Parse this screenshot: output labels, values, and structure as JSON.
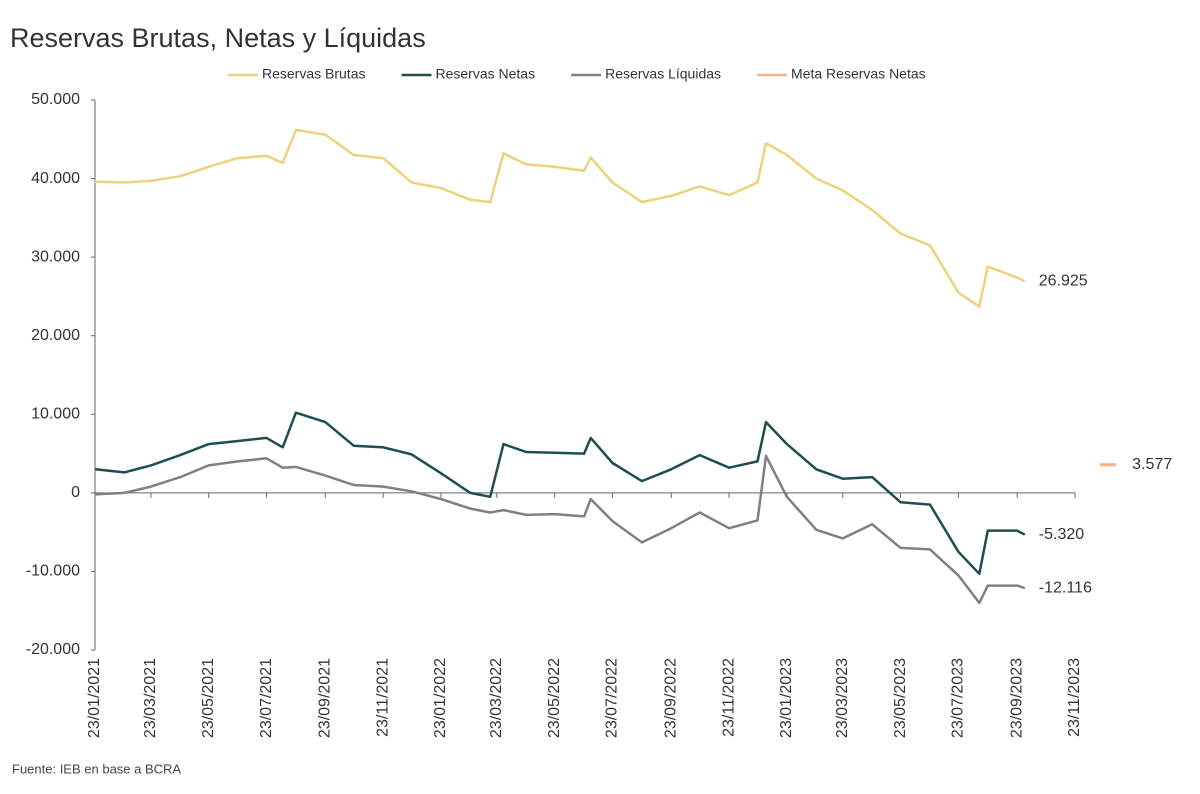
{
  "chart_data": {
    "type": "line",
    "title": "Reservas Brutas, Netas y Líquidas",
    "source": "Fuente: IEB en base a BCRA",
    "x": [
      "2021-01-23",
      "2021-02-23",
      "2021-03-23",
      "2021-04-23",
      "2021-05-23",
      "2021-06-23",
      "2021-07-23",
      "2021-08-09",
      "2021-08-23",
      "2021-09-23",
      "2021-10-23",
      "2021-11-23",
      "2021-12-23",
      "2022-01-23",
      "2022-02-23",
      "2022-03-16",
      "2022-03-30",
      "2022-04-23",
      "2022-05-23",
      "2022-06-23",
      "2022-06-30",
      "2022-07-23",
      "2022-08-23",
      "2022-09-23",
      "2022-10-23",
      "2022-11-23",
      "2022-12-23",
      "2023-01-01",
      "2023-01-23",
      "2023-02-23",
      "2023-03-23",
      "2023-04-23",
      "2023-05-23",
      "2023-06-23",
      "2023-07-23",
      "2023-08-14",
      "2023-08-23",
      "2023-09-23",
      "2023-10-01"
    ],
    "series": [
      {
        "name": "Reservas Brutas",
        "color": "#ecd27a",
        "values": [
          39600,
          39500,
          39700,
          40300,
          41500,
          42600,
          42900,
          42000,
          46200,
          45600,
          43000,
          42600,
          39500,
          38800,
          37300,
          37000,
          43200,
          41800,
          41500,
          41000,
          42700,
          39500,
          37000,
          37800,
          39000,
          37900,
          39500,
          44500,
          43000,
          40000,
          38500,
          36000,
          33000,
          31500,
          25500,
          23700,
          28800,
          27400,
          26925
        ],
        "value_labels": [
          null,
          null,
          null,
          null,
          null,
          null,
          null,
          null,
          null,
          null,
          null,
          null,
          null,
          null,
          null,
          null,
          null,
          null,
          null,
          null,
          null,
          null,
          null,
          null,
          null,
          null,
          null,
          null,
          null,
          null,
          null,
          null,
          null,
          null,
          null,
          null,
          null,
          null,
          "26.925"
        ]
      },
      {
        "name": "Reservas Netas",
        "color": "#1e4d52",
        "values": [
          3000,
          2600,
          3500,
          4800,
          6200,
          6600,
          7000,
          5800,
          10200,
          9000,
          6000,
          5800,
          4900,
          2500,
          0,
          -500,
          6200,
          5200,
          5100,
          5000,
          7000,
          3800,
          1500,
          3000,
          4800,
          3200,
          4000,
          9000,
          6200,
          3000,
          1800,
          2000,
          -1200,
          -1500,
          -7500,
          -10300,
          -4800,
          -4800,
          -5320
        ],
        "value_labels": [
          null,
          null,
          null,
          null,
          null,
          null,
          null,
          null,
          null,
          null,
          null,
          null,
          null,
          null,
          null,
          null,
          null,
          null,
          null,
          null,
          null,
          null,
          null,
          null,
          null,
          null,
          null,
          null,
          null,
          null,
          null,
          null,
          null,
          null,
          null,
          null,
          null,
          null,
          "-5.320"
        ]
      },
      {
        "name": "Reservas Líquidas",
        "color": "#808080",
        "values": [
          -200,
          0,
          800,
          2000,
          3500,
          4000,
          4400,
          3200,
          3300,
          2200,
          1000,
          800,
          200,
          -800,
          -2000,
          -2500,
          -2200,
          -2800,
          -2700,
          -3000,
          -800,
          -3600,
          -6300,
          -4500,
          -2500,
          -4500,
          -3500,
          4700,
          -500,
          -4700,
          -5800,
          -4000,
          -7000,
          -7200,
          -10500,
          -14000,
          -11800,
          -11800,
          -12116
        ],
        "value_labels": [
          null,
          null,
          null,
          null,
          null,
          null,
          null,
          null,
          null,
          null,
          null,
          null,
          null,
          null,
          null,
          null,
          null,
          null,
          null,
          null,
          null,
          null,
          null,
          null,
          null,
          null,
          null,
          null,
          null,
          null,
          null,
          null,
          null,
          null,
          null,
          null,
          null,
          null,
          "-12.116"
        ]
      },
      {
        "name": "Meta Reservas Netas",
        "color": "#f4b183",
        "marker": "dash",
        "x": [
          "2023-12-28"
        ],
        "values": [
          3577
        ],
        "value_labels": [
          "3.577"
        ]
      }
    ],
    "xlim": [
      "2021-01-23",
      "2023-11-23"
    ],
    "xticks": [
      {
        "value": "2021-01-23",
        "label": "23/01/2021"
      },
      {
        "value": "2021-03-23",
        "label": "23/03/2021"
      },
      {
        "value": "2021-05-23",
        "label": "23/05/2021"
      },
      {
        "value": "2021-07-23",
        "label": "23/07/2021"
      },
      {
        "value": "2021-09-23",
        "label": "23/09/2021"
      },
      {
        "value": "2021-11-23",
        "label": "23/11/2021"
      },
      {
        "value": "2022-01-23",
        "label": "23/01/2022"
      },
      {
        "value": "2022-03-23",
        "label": "23/03/2022"
      },
      {
        "value": "2022-05-23",
        "label": "23/05/2022"
      },
      {
        "value": "2022-07-23",
        "label": "23/07/2022"
      },
      {
        "value": "2022-09-23",
        "label": "23/09/2022"
      },
      {
        "value": "2022-11-23",
        "label": "23/11/2022"
      },
      {
        "value": "2023-01-23",
        "label": "23/01/2023"
      },
      {
        "value": "2023-03-23",
        "label": "23/03/2023"
      },
      {
        "value": "2023-05-23",
        "label": "23/05/2023"
      },
      {
        "value": "2023-07-23",
        "label": "23/07/2023"
      },
      {
        "value": "2023-09-23",
        "label": "23/09/2023"
      },
      {
        "value": "2023-11-23",
        "label": "23/11/2023"
      }
    ],
    "ylim": [
      -20000,
      50000
    ],
    "yticks": [
      {
        "value": -20000,
        "label": "-20.000"
      },
      {
        "value": -10000,
        "label": "-10.000"
      },
      0,
      {
        "value": 10000,
        "label": "10.000"
      },
      {
        "value": 20000,
        "label": "20.000"
      },
      {
        "value": 30000,
        "label": "30.000"
      },
      {
        "value": 40000,
        "label": "40.000"
      },
      {
        "value": 50000,
        "label": "50.000"
      }
    ],
    "grid": false,
    "legend": "top"
  }
}
